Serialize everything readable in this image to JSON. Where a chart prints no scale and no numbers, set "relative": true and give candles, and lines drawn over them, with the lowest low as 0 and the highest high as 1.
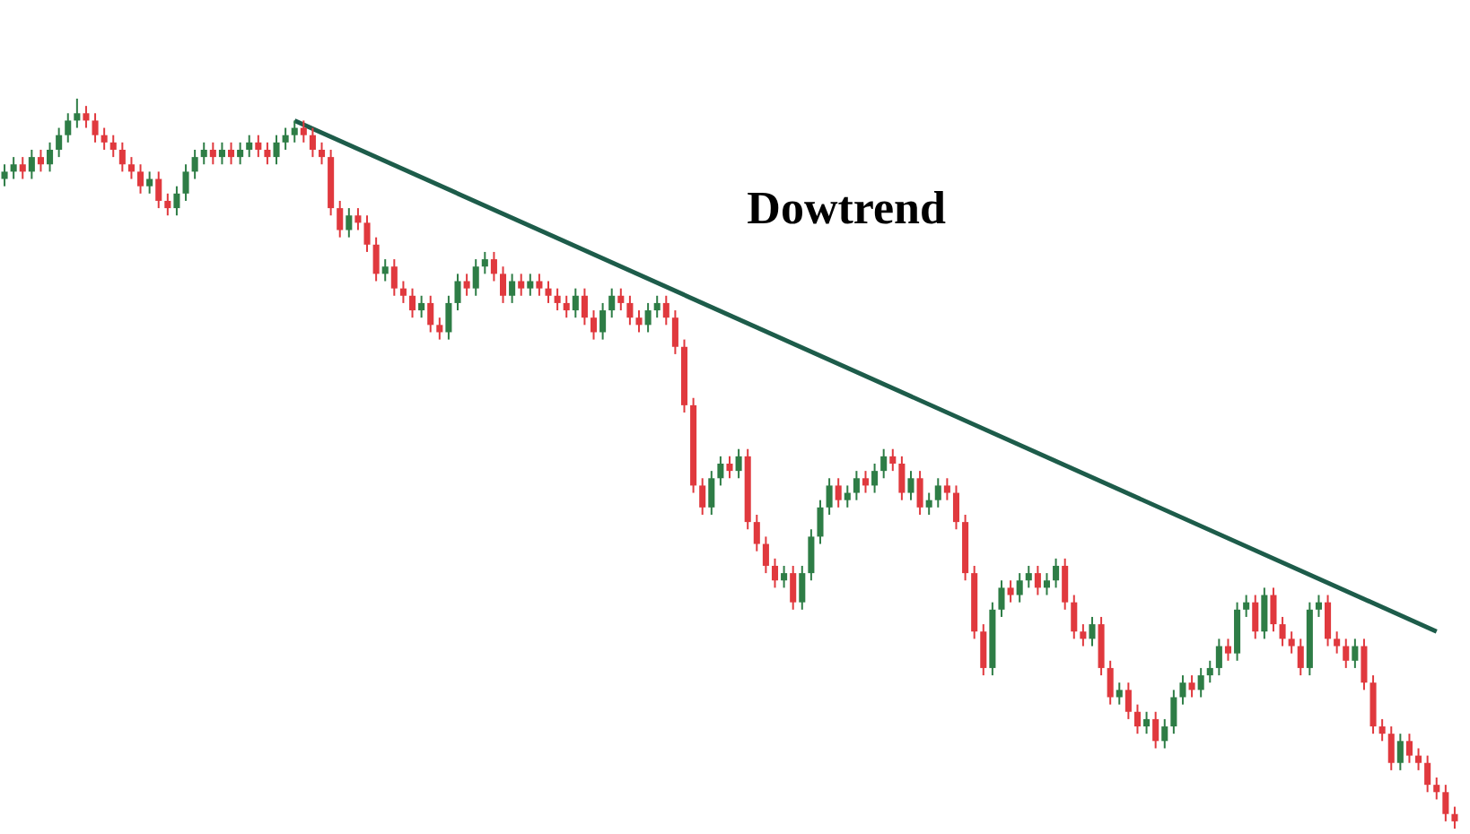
{
  "chart_data": {
    "type": "candlestick",
    "relative": true,
    "tick_labels": false,
    "annotations": [
      "Dowtrend"
    ],
    "categories": [
      null,
      null,
      null,
      null,
      null,
      null,
      null,
      null,
      null,
      null,
      null,
      null,
      null,
      null,
      null,
      null,
      null,
      null,
      null,
      null,
      null,
      null,
      null,
      null,
      null,
      null,
      null,
      null,
      null,
      null,
      null,
      null,
      null,
      null,
      null,
      null,
      null,
      null,
      null,
      null,
      null,
      null,
      null,
      null,
      null,
      null,
      null,
      null,
      null,
      null,
      null,
      null,
      null,
      null,
      null,
      null,
      null,
      null,
      null,
      null,
      null,
      null,
      null,
      null,
      null,
      null,
      null,
      null,
      null,
      null,
      null,
      null,
      null,
      null,
      null,
      null,
      null,
      null,
      null,
      null,
      null,
      null,
      null,
      null,
      null,
      null,
      null,
      null,
      null,
      null,
      null,
      null,
      null,
      null,
      null,
      null,
      null,
      null,
      null,
      null,
      null,
      null,
      null,
      null,
      null,
      null,
      null,
      null,
      null,
      null,
      null,
      null,
      null,
      null,
      null,
      null,
      null,
      null,
      null,
      null,
      null,
      null,
      null,
      null,
      null,
      null,
      null,
      null,
      null,
      null,
      null,
      null,
      null,
      null,
      null,
      null,
      null,
      null,
      null,
      null,
      null,
      null,
      null,
      null,
      null,
      null,
      null,
      null,
      null,
      null,
      null,
      null,
      null,
      null,
      null,
      null,
      null,
      null,
      null,
      null,
      null
    ],
    "ohlc": [
      [
        0.89,
        0.91,
        0.88,
        0.9
      ],
      [
        0.9,
        0.92,
        0.89,
        0.91
      ],
      [
        0.91,
        0.92,
        0.89,
        0.9
      ],
      [
        0.9,
        0.93,
        0.89,
        0.92
      ],
      [
        0.92,
        0.93,
        0.9,
        0.91
      ],
      [
        0.91,
        0.94,
        0.9,
        0.93
      ],
      [
        0.93,
        0.96,
        0.92,
        0.95
      ],
      [
        0.95,
        0.98,
        0.94,
        0.97
      ],
      [
        0.97,
        1,
        0.96,
        0.98
      ],
      [
        0.98,
        0.99,
        0.96,
        0.97
      ],
      [
        0.97,
        0.98,
        0.94,
        0.95
      ],
      [
        0.95,
        0.96,
        0.93,
        0.94
      ],
      [
        0.94,
        0.95,
        0.92,
        0.93
      ],
      [
        0.93,
        0.94,
        0.9,
        0.91
      ],
      [
        0.91,
        0.92,
        0.89,
        0.9
      ],
      [
        0.9,
        0.91,
        0.87,
        0.88
      ],
      [
        0.88,
        0.9,
        0.87,
        0.89
      ],
      [
        0.89,
        0.9,
        0.85,
        0.86
      ],
      [
        0.86,
        0.87,
        0.84,
        0.85
      ],
      [
        0.85,
        0.88,
        0.84,
        0.87
      ],
      [
        0.87,
        0.91,
        0.86,
        0.9
      ],
      [
        0.9,
        0.93,
        0.89,
        0.92
      ],
      [
        0.92,
        0.94,
        0.91,
        0.93
      ],
      [
        0.93,
        0.94,
        0.91,
        0.92
      ],
      [
        0.92,
        0.94,
        0.91,
        0.93
      ],
      [
        0.93,
        0.94,
        0.91,
        0.92
      ],
      [
        0.92,
        0.94,
        0.91,
        0.93
      ],
      [
        0.93,
        0.95,
        0.92,
        0.94
      ],
      [
        0.94,
        0.95,
        0.92,
        0.93
      ],
      [
        0.93,
        0.94,
        0.91,
        0.92
      ],
      [
        0.92,
        0.95,
        0.91,
        0.94
      ],
      [
        0.94,
        0.96,
        0.93,
        0.95
      ],
      [
        0.95,
        0.97,
        0.94,
        0.96
      ],
      [
        0.96,
        0.97,
        0.94,
        0.95
      ],
      [
        0.95,
        0.96,
        0.92,
        0.93
      ],
      [
        0.93,
        0.94,
        0.91,
        0.92
      ],
      [
        0.92,
        0.93,
        0.84,
        0.85
      ],
      [
        0.85,
        0.86,
        0.81,
        0.82
      ],
      [
        0.82,
        0.85,
        0.81,
        0.84
      ],
      [
        0.84,
        0.85,
        0.82,
        0.83
      ],
      [
        0.83,
        0.84,
        0.79,
        0.8
      ],
      [
        0.8,
        0.81,
        0.75,
        0.76
      ],
      [
        0.76,
        0.78,
        0.75,
        0.77
      ],
      [
        0.77,
        0.78,
        0.73,
        0.74
      ],
      [
        0.74,
        0.75,
        0.72,
        0.73
      ],
      [
        0.73,
        0.74,
        0.7,
        0.71
      ],
      [
        0.71,
        0.73,
        0.7,
        0.72
      ],
      [
        0.72,
        0.73,
        0.68,
        0.69
      ],
      [
        0.69,
        0.7,
        0.67,
        0.68
      ],
      [
        0.68,
        0.73,
        0.67,
        0.72
      ],
      [
        0.72,
        0.76,
        0.71,
        0.75
      ],
      [
        0.75,
        0.76,
        0.73,
        0.74
      ],
      [
        0.74,
        0.78,
        0.73,
        0.77
      ],
      [
        0.77,
        0.79,
        0.76,
        0.78
      ],
      [
        0.78,
        0.79,
        0.75,
        0.76
      ],
      [
        0.76,
        0.77,
        0.72,
        0.73
      ],
      [
        0.73,
        0.76,
        0.72,
        0.75
      ],
      [
        0.75,
        0.76,
        0.73,
        0.74
      ],
      [
        0.74,
        0.76,
        0.73,
        0.75
      ],
      [
        0.75,
        0.76,
        0.73,
        0.74
      ],
      [
        0.74,
        0.75,
        0.72,
        0.73
      ],
      [
        0.73,
        0.74,
        0.71,
        0.72
      ],
      [
        0.72,
        0.73,
        0.7,
        0.71
      ],
      [
        0.71,
        0.74,
        0.7,
        0.73
      ],
      [
        0.73,
        0.74,
        0.69,
        0.7
      ],
      [
        0.7,
        0.71,
        0.67,
        0.68
      ],
      [
        0.68,
        0.72,
        0.67,
        0.71
      ],
      [
        0.71,
        0.74,
        0.7,
        0.73
      ],
      [
        0.73,
        0.74,
        0.71,
        0.72
      ],
      [
        0.72,
        0.73,
        0.69,
        0.7
      ],
      [
        0.7,
        0.71,
        0.68,
        0.69
      ],
      [
        0.69,
        0.72,
        0.68,
        0.71
      ],
      [
        0.71,
        0.73,
        0.7,
        0.72
      ],
      [
        0.72,
        0.73,
        0.69,
        0.7
      ],
      [
        0.7,
        0.71,
        0.65,
        0.66
      ],
      [
        0.66,
        0.67,
        0.57,
        0.58
      ],
      [
        0.58,
        0.59,
        0.46,
        0.47
      ],
      [
        0.47,
        0.48,
        0.43,
        0.44
      ],
      [
        0.44,
        0.49,
        0.43,
        0.48
      ],
      [
        0.48,
        0.51,
        0.47,
        0.5
      ],
      [
        0.5,
        0.51,
        0.48,
        0.49
      ],
      [
        0.49,
        0.52,
        0.48,
        0.51
      ],
      [
        0.51,
        0.52,
        0.41,
        0.42
      ],
      [
        0.42,
        0.43,
        0.38,
        0.39
      ],
      [
        0.39,
        0.4,
        0.35,
        0.36
      ],
      [
        0.36,
        0.37,
        0.33,
        0.34
      ],
      [
        0.34,
        0.36,
        0.33,
        0.35
      ],
      [
        0.35,
        0.36,
        0.3,
        0.31
      ],
      [
        0.31,
        0.36,
        0.3,
        0.35
      ],
      [
        0.35,
        0.41,
        0.34,
        0.4
      ],
      [
        0.4,
        0.45,
        0.39,
        0.44
      ],
      [
        0.44,
        0.48,
        0.43,
        0.47
      ],
      [
        0.47,
        0.48,
        0.44,
        0.45
      ],
      [
        0.45,
        0.47,
        0.44,
        0.46
      ],
      [
        0.46,
        0.49,
        0.45,
        0.48
      ],
      [
        0.48,
        0.49,
        0.46,
        0.47
      ],
      [
        0.47,
        0.5,
        0.46,
        0.49
      ],
      [
        0.49,
        0.52,
        0.48,
        0.51
      ],
      [
        0.51,
        0.52,
        0.49,
        0.5
      ],
      [
        0.5,
        0.51,
        0.45,
        0.46
      ],
      [
        0.46,
        0.49,
        0.45,
        0.48
      ],
      [
        0.48,
        0.49,
        0.43,
        0.44
      ],
      [
        0.44,
        0.46,
        0.43,
        0.45
      ],
      [
        0.45,
        0.48,
        0.44,
        0.47
      ],
      [
        0.47,
        0.48,
        0.45,
        0.46
      ],
      [
        0.46,
        0.47,
        0.41,
        0.42
      ],
      [
        0.42,
        0.43,
        0.34,
        0.35
      ],
      [
        0.35,
        0.36,
        0.26,
        0.27
      ],
      [
        0.27,
        0.28,
        0.21,
        0.22
      ],
      [
        0.22,
        0.31,
        0.21,
        0.3
      ],
      [
        0.3,
        0.34,
        0.29,
        0.33
      ],
      [
        0.33,
        0.34,
        0.31,
        0.32
      ],
      [
        0.32,
        0.35,
        0.31,
        0.34
      ],
      [
        0.34,
        0.36,
        0.33,
        0.35
      ],
      [
        0.35,
        0.36,
        0.32,
        0.33
      ],
      [
        0.33,
        0.35,
        0.32,
        0.34
      ],
      [
        0.34,
        0.37,
        0.33,
        0.36
      ],
      [
        0.36,
        0.37,
        0.3,
        0.31
      ],
      [
        0.31,
        0.32,
        0.26,
        0.27
      ],
      [
        0.27,
        0.28,
        0.25,
        0.26
      ],
      [
        0.26,
        0.29,
        0.25,
        0.28
      ],
      [
        0.28,
        0.29,
        0.21,
        0.22
      ],
      [
        0.22,
        0.23,
        0.17,
        0.18
      ],
      [
        0.18,
        0.2,
        0.17,
        0.19
      ],
      [
        0.19,
        0.2,
        0.15,
        0.16
      ],
      [
        0.16,
        0.17,
        0.13,
        0.14
      ],
      [
        0.14,
        0.16,
        0.13,
        0.15
      ],
      [
        0.15,
        0.16,
        0.11,
        0.12
      ],
      [
        0.12,
        0.15,
        0.11,
        0.14
      ],
      [
        0.14,
        0.19,
        0.13,
        0.18
      ],
      [
        0.18,
        0.21,
        0.17,
        0.2
      ],
      [
        0.2,
        0.21,
        0.18,
        0.19
      ],
      [
        0.19,
        0.22,
        0.18,
        0.21
      ],
      [
        0.21,
        0.23,
        0.2,
        0.22
      ],
      [
        0.22,
        0.26,
        0.21,
        0.25
      ],
      [
        0.25,
        0.26,
        0.23,
        0.24
      ],
      [
        0.24,
        0.31,
        0.23,
        0.3
      ],
      [
        0.3,
        0.32,
        0.29,
        0.31
      ],
      [
        0.31,
        0.32,
        0.26,
        0.27
      ],
      [
        0.27,
        0.33,
        0.26,
        0.32
      ],
      [
        0.32,
        0.33,
        0.27,
        0.28
      ],
      [
        0.28,
        0.29,
        0.25,
        0.26
      ],
      [
        0.26,
        0.27,
        0.24,
        0.25
      ],
      [
        0.25,
        0.26,
        0.21,
        0.22
      ],
      [
        0.22,
        0.31,
        0.21,
        0.3
      ],
      [
        0.3,
        0.32,
        0.29,
        0.31
      ],
      [
        0.31,
        0.32,
        0.25,
        0.26
      ],
      [
        0.26,
        0.27,
        0.24,
        0.25
      ],
      [
        0.25,
        0.26,
        0.22,
        0.23
      ],
      [
        0.23,
        0.26,
        0.22,
        0.25
      ],
      [
        0.25,
        0.26,
        0.19,
        0.2
      ],
      [
        0.2,
        0.21,
        0.13,
        0.14
      ],
      [
        0.14,
        0.15,
        0.12,
        0.13
      ],
      [
        0.13,
        0.14,
        0.08,
        0.09
      ],
      [
        0.09,
        0.13,
        0.08,
        0.12
      ],
      [
        0.12,
        0.13,
        0.09,
        0.1
      ],
      [
        0.1,
        0.11,
        0.08,
        0.09
      ],
      [
        0.09,
        0.1,
        0.05,
        0.06
      ],
      [
        0.06,
        0.07,
        0.04,
        0.05
      ],
      [
        0.05,
        0.06,
        0.01,
        0.02
      ],
      [
        0.02,
        0.03,
        0,
        0.01
      ]
    ],
    "colors": [
      "#2e7d46",
      "#2e7d46",
      "#e0393e",
      "#2e7d46",
      "#e0393e",
      "#2e7d46",
      "#2e7d46",
      "#2e7d46",
      "#2e7d46",
      "#e0393e",
      "#e0393e",
      "#e0393e",
      "#e0393e",
      "#e0393e",
      "#e0393e",
      "#e0393e",
      "#2e7d46",
      "#e0393e",
      "#e0393e",
      "#2e7d46",
      "#2e7d46",
      "#2e7d46",
      "#2e7d46",
      "#e0393e",
      "#2e7d46",
      "#e0393e",
      "#2e7d46",
      "#2e7d46",
      "#e0393e",
      "#e0393e",
      "#2e7d46",
      "#2e7d46",
      "#2e7d46",
      "#e0393e",
      "#e0393e",
      "#e0393e",
      "#e0393e",
      "#e0393e",
      "#2e7d46",
      "#e0393e",
      "#e0393e",
      "#e0393e",
      "#2e7d46",
      "#e0393e",
      "#e0393e",
      "#e0393e",
      "#2e7d46",
      "#e0393e",
      "#e0393e",
      "#2e7d46",
      "#2e7d46",
      "#e0393e",
      "#2e7d46",
      "#2e7d46",
      "#e0393e",
      "#e0393e",
      "#2e7d46",
      "#e0393e",
      "#2e7d46",
      "#e0393e",
      "#e0393e",
      "#e0393e",
      "#e0393e",
      "#2e7d46",
      "#e0393e",
      "#e0393e",
      "#2e7d46",
      "#2e7d46",
      "#e0393e",
      "#e0393e",
      "#e0393e",
      "#2e7d46",
      "#2e7d46",
      "#e0393e",
      "#e0393e",
      "#e0393e",
      "#e0393e",
      "#e0393e",
      "#2e7d46",
      "#2e7d46",
      "#e0393e",
      "#2e7d46",
      "#e0393e",
      "#e0393e",
      "#e0393e",
      "#e0393e",
      "#2e7d46",
      "#e0393e",
      "#2e7d46",
      "#2e7d46",
      "#2e7d46",
      "#2e7d46",
      "#e0393e",
      "#2e7d46",
      "#2e7d46",
      "#e0393e",
      "#2e7d46",
      "#2e7d46",
      "#e0393e",
      "#e0393e",
      "#2e7d46",
      "#e0393e",
      "#2e7d46",
      "#2e7d46",
      "#e0393e",
      "#e0393e",
      "#e0393e",
      "#e0393e",
      "#e0393e",
      "#2e7d46",
      "#2e7d46",
      "#e0393e",
      "#2e7d46",
      "#2e7d46",
      "#e0393e",
      "#2e7d46",
      "#2e7d46",
      "#e0393e",
      "#e0393e",
      "#e0393e",
      "#2e7d46",
      "#e0393e",
      "#e0393e",
      "#2e7d46",
      "#e0393e",
      "#e0393e",
      "#2e7d46",
      "#e0393e",
      "#2e7d46",
      "#2e7d46",
      "#2e7d46",
      "#e0393e",
      "#2e7d46",
      "#2e7d46",
      "#2e7d46",
      "#e0393e",
      "#2e7d46",
      "#2e7d46",
      "#e0393e",
      "#2e7d46",
      "#e0393e",
      "#e0393e",
      "#e0393e",
      "#e0393e",
      "#2e7d46",
      "#2e7d46",
      "#e0393e",
      "#e0393e",
      "#e0393e",
      "#2e7d46",
      "#e0393e",
      "#e0393e",
      "#e0393e",
      "#e0393e",
      "#2e7d46",
      "#e0393e",
      "#e0393e",
      "#e0393e",
      "#e0393e",
      "#e0393e",
      "#e0393e"
    ],
    "series": [
      {
        "type": "line",
        "color": "#1d5c4a",
        "values": [
          null,
          null,
          null,
          null,
          null,
          null,
          null,
          null,
          null,
          null,
          null,
          null,
          null,
          null,
          null,
          null,
          null,
          null,
          null,
          null,
          null,
          null,
          null,
          null,
          null,
          null,
          null,
          null,
          null,
          null,
          null,
          null,
          0.97,
          null,
          null,
          null,
          null,
          null,
          null,
          null,
          null,
          null,
          null,
          null,
          null,
          null,
          null,
          null,
          null,
          null,
          null,
          null,
          null,
          null,
          null,
          null,
          null,
          null,
          null,
          null,
          null,
          null,
          null,
          null,
          null,
          null,
          null,
          null,
          null,
          null,
          null,
          null,
          null,
          null,
          null,
          null,
          null,
          null,
          null,
          null,
          null,
          null,
          null,
          null,
          null,
          null,
          null,
          null,
          null,
          null,
          null,
          null,
          null,
          null,
          null,
          null,
          null,
          null,
          null,
          null,
          null,
          null,
          null,
          null,
          null,
          null,
          null,
          null,
          null,
          null,
          null,
          null,
          null,
          null,
          null,
          null,
          null,
          null,
          null,
          null,
          null,
          null,
          null,
          null,
          null,
          null,
          null,
          null,
          null,
          null,
          null,
          null,
          null,
          null,
          null,
          null,
          null,
          null,
          null,
          null,
          null,
          null,
          null,
          null,
          null,
          null,
          null,
          null,
          null,
          null,
          null,
          null,
          null,
          null,
          null,
          null,
          null,
          null,
          0.27,
          null,
          null
        ]
      }
    ]
  }
}
